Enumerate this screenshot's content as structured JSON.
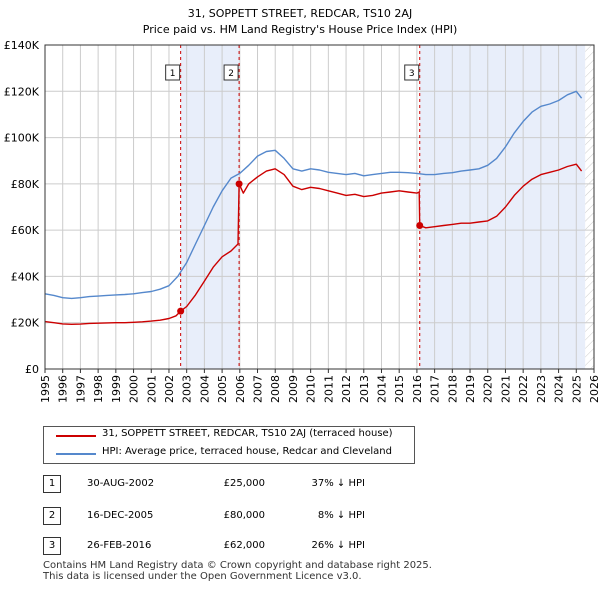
{
  "chart_data": {
    "type": "line",
    "title": "31, SOPPETT STREET, REDCAR, TS10 2AJ",
    "subtitle": "Price paid vs. HM Land Registry's House Price Index (HPI)",
    "xlim": [
      1995,
      2026
    ],
    "ylim": [
      0,
      140000
    ],
    "x_ticks": [
      "1995",
      "1996",
      "1997",
      "1998",
      "1999",
      "2000",
      "2001",
      "2002",
      "2003",
      "2004",
      "2005",
      "2006",
      "2007",
      "2008",
      "2009",
      "2010",
      "2011",
      "2012",
      "2013",
      "2014",
      "2015",
      "2016",
      "2017",
      "2018",
      "2019",
      "2020",
      "2021",
      "2022",
      "2023",
      "2024",
      "2025",
      "2026"
    ],
    "y_ticks": [
      {
        "value": 0,
        "label": "£0"
      },
      {
        "value": 20000,
        "label": "£20K"
      },
      {
        "value": 40000,
        "label": "£40K"
      },
      {
        "value": 60000,
        "label": "£60K"
      },
      {
        "value": 80000,
        "label": "£80K"
      },
      {
        "value": 100000,
        "label": "£100K"
      },
      {
        "value": 120000,
        "label": "£120K"
      },
      {
        "value": 140000,
        "label": "£140K"
      }
    ],
    "colors": {
      "property": "#cc0000",
      "hpi": "#5588cc",
      "shade": "#e8eefa",
      "grid": "#cccccc",
      "vline": "#cc0000"
    },
    "future_from": 2025.5,
    "series": [
      {
        "name": "31, SOPPETT STREET, REDCAR, TS10 2AJ (terraced house)",
        "color": "#cc0000",
        "points": [
          [
            1995.0,
            20500
          ],
          [
            1995.5,
            20000
          ],
          [
            1996.0,
            19500
          ],
          [
            1996.5,
            19300
          ],
          [
            1997.0,
            19400
          ],
          [
            1997.5,
            19700
          ],
          [
            1998.0,
            19800
          ],
          [
            1998.5,
            19900
          ],
          [
            1999.0,
            20000
          ],
          [
            1999.5,
            20000
          ],
          [
            2000.0,
            20200
          ],
          [
            2000.5,
            20400
          ],
          [
            2001.0,
            20700
          ],
          [
            2001.5,
            21100
          ],
          [
            2002.0,
            21800
          ],
          [
            2002.4,
            23000
          ],
          [
            2002.66,
            25000
          ],
          [
            2003.0,
            27000
          ],
          [
            2003.5,
            32000
          ],
          [
            2004.0,
            38000
          ],
          [
            2004.5,
            44000
          ],
          [
            2005.0,
            48500
          ],
          [
            2005.5,
            51000
          ],
          [
            2005.9,
            54000
          ],
          [
            2005.96,
            80000
          ],
          [
            2006.2,
            76000
          ],
          [
            2006.5,
            80000
          ],
          [
            2007.0,
            83000
          ],
          [
            2007.5,
            85500
          ],
          [
            2008.0,
            86500
          ],
          [
            2008.5,
            84000
          ],
          [
            2009.0,
            79000
          ],
          [
            2009.5,
            77500
          ],
          [
            2010.0,
            78500
          ],
          [
            2010.5,
            78000
          ],
          [
            2011.0,
            77000
          ],
          [
            2011.5,
            76000
          ],
          [
            2012.0,
            75000
          ],
          [
            2012.5,
            75500
          ],
          [
            2013.0,
            74500
          ],
          [
            2013.5,
            75000
          ],
          [
            2014.0,
            76000
          ],
          [
            2014.5,
            76500
          ],
          [
            2015.0,
            77000
          ],
          [
            2015.5,
            76500
          ],
          [
            2016.0,
            76000
          ],
          [
            2016.13,
            76500
          ],
          [
            2016.16,
            62000
          ],
          [
            2016.5,
            61000
          ],
          [
            2017.0,
            61500
          ],
          [
            2017.5,
            62000
          ],
          [
            2018.0,
            62500
          ],
          [
            2018.5,
            63000
          ],
          [
            2019.0,
            63000
          ],
          [
            2019.5,
            63500
          ],
          [
            2020.0,
            64000
          ],
          [
            2020.5,
            66000
          ],
          [
            2021.0,
            70000
          ],
          [
            2021.5,
            75000
          ],
          [
            2022.0,
            79000
          ],
          [
            2022.5,
            82000
          ],
          [
            2023.0,
            84000
          ],
          [
            2023.5,
            85000
          ],
          [
            2024.0,
            86000
          ],
          [
            2024.5,
            87500
          ],
          [
            2025.0,
            88500
          ],
          [
            2025.3,
            85500
          ]
        ]
      },
      {
        "name": "HPI: Average price, terraced house, Redcar and Cleveland",
        "color": "#5588cc",
        "points": [
          [
            1995.0,
            32500
          ],
          [
            1995.5,
            31800
          ],
          [
            1996.0,
            30800
          ],
          [
            1996.5,
            30500
          ],
          [
            1997.0,
            30800
          ],
          [
            1997.5,
            31300
          ],
          [
            1998.0,
            31500
          ],
          [
            1998.5,
            31800
          ],
          [
            1999.0,
            32000
          ],
          [
            1999.5,
            32200
          ],
          [
            2000.0,
            32500
          ],
          [
            2000.5,
            33000
          ],
          [
            2001.0,
            33500
          ],
          [
            2001.5,
            34500
          ],
          [
            2002.0,
            36000
          ],
          [
            2002.5,
            40000
          ],
          [
            2003.0,
            46000
          ],
          [
            2003.5,
            54000
          ],
          [
            2004.0,
            62000
          ],
          [
            2004.5,
            70000
          ],
          [
            2005.0,
            77000
          ],
          [
            2005.5,
            82500
          ],
          [
            2006.0,
            84500
          ],
          [
            2006.5,
            88000
          ],
          [
            2007.0,
            92000
          ],
          [
            2007.5,
            94000
          ],
          [
            2008.0,
            94500
          ],
          [
            2008.5,
            91000
          ],
          [
            2009.0,
            86500
          ],
          [
            2009.5,
            85500
          ],
          [
            2010.0,
            86500
          ],
          [
            2010.5,
            86000
          ],
          [
            2011.0,
            85000
          ],
          [
            2011.5,
            84500
          ],
          [
            2012.0,
            84000
          ],
          [
            2012.5,
            84500
          ],
          [
            2013.0,
            83500
          ],
          [
            2013.5,
            84000
          ],
          [
            2014.0,
            84500
          ],
          [
            2014.5,
            85000
          ],
          [
            2015.0,
            85000
          ],
          [
            2015.5,
            84800
          ],
          [
            2016.0,
            84500
          ],
          [
            2016.5,
            84000
          ],
          [
            2017.0,
            84000
          ],
          [
            2017.5,
            84500
          ],
          [
            2018.0,
            84800
          ],
          [
            2018.5,
            85500
          ],
          [
            2019.0,
            86000
          ],
          [
            2019.5,
            86500
          ],
          [
            2020.0,
            88000
          ],
          [
            2020.5,
            91000
          ],
          [
            2021.0,
            96000
          ],
          [
            2021.5,
            102000
          ],
          [
            2022.0,
            107000
          ],
          [
            2022.5,
            111000
          ],
          [
            2023.0,
            113500
          ],
          [
            2023.5,
            114500
          ],
          [
            2024.0,
            116000
          ],
          [
            2024.5,
            118500
          ],
          [
            2025.0,
            120000
          ],
          [
            2025.3,
            117000
          ]
        ]
      }
    ],
    "transactions": [
      {
        "label": "1",
        "x": 2002.66,
        "y": 25000,
        "date": "30-AUG-2002",
        "price": "£25,000",
        "hpi": "37% ↓ HPI"
      },
      {
        "label": "2",
        "x": 2005.96,
        "y": 80000,
        "date": "16-DEC-2005",
        "price": "£80,000",
        "hpi": "8% ↓ HPI"
      },
      {
        "label": "3",
        "x": 2016.16,
        "y": 62000,
        "date": "26-FEB-2016",
        "price": "£62,000",
        "hpi": "26% ↓ HPI"
      }
    ],
    "shaded_ranges": [
      [
        2002.66,
        2005.96
      ],
      [
        2016.16,
        2025.5
      ]
    ]
  },
  "legend": {
    "property_label": "31, SOPPETT STREET, REDCAR, TS10 2AJ (terraced house)",
    "hpi_label": "HPI: Average price, terraced house, Redcar and Cleveland"
  },
  "footer": {
    "line1": "Contains HM Land Registry data © Crown copyright and database right 2025.",
    "line2": "This data is licensed under the Open Government Licence v3.0."
  }
}
